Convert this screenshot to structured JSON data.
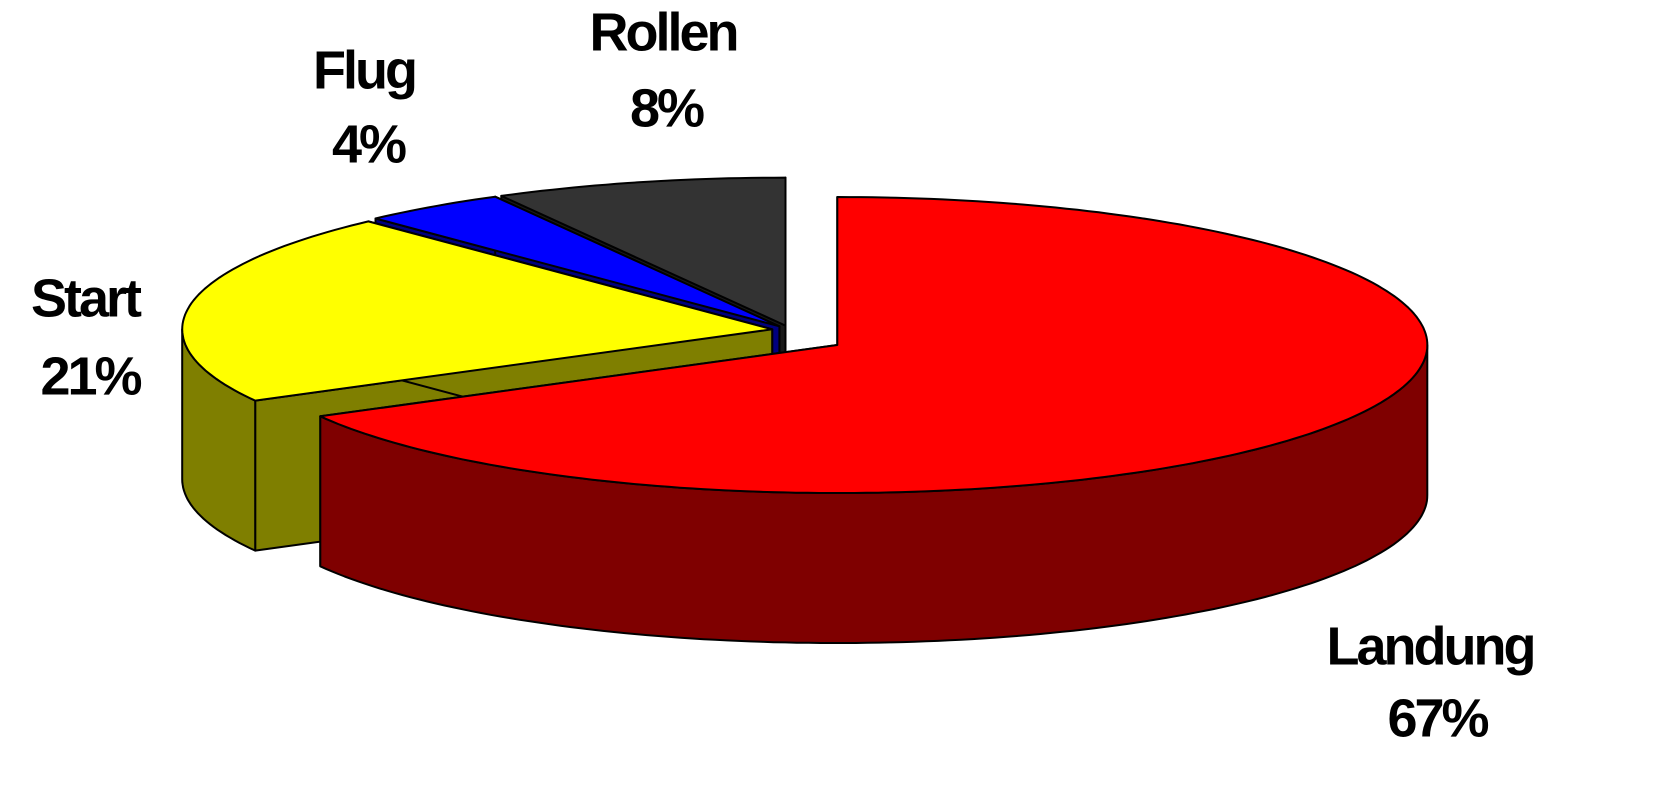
{
  "chart_data": {
    "type": "pie3d",
    "categories": [
      "Landung",
      "Start",
      "Flug",
      "Rollen"
    ],
    "values": [
      67,
      21,
      4,
      8
    ],
    "value_labels": [
      "67%",
      "21%",
      "4%",
      "8%"
    ],
    "colors": [
      "#ff0000",
      "#ffff00",
      "#0000ff",
      "#333333"
    ]
  }
}
